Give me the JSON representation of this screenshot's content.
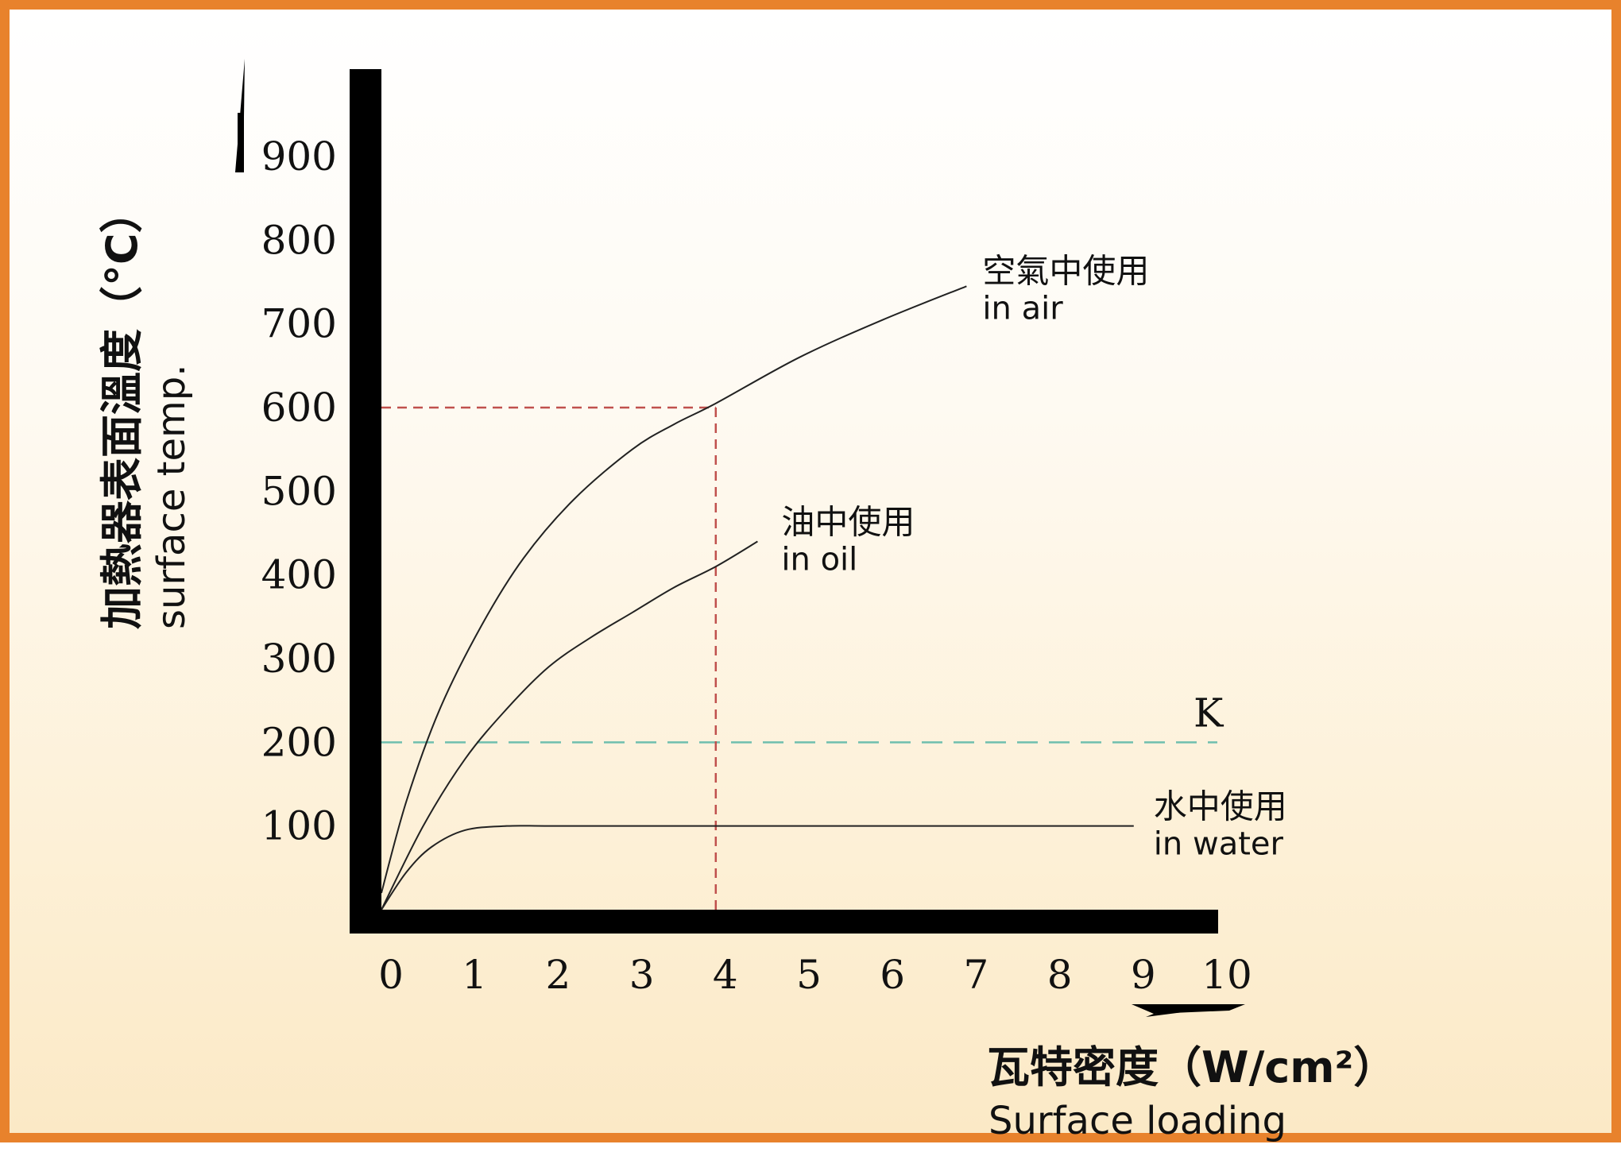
{
  "chart_data": {
    "type": "line",
    "xlabel": "瓦特密度（W/cm²）",
    "xlabel_en": "Surface loading",
    "ylabel": "加熱器表面溫度（°C）",
    "ylabel_en": "surface temp.",
    "xlim": [
      0,
      10
    ],
    "ylim": [
      0,
      1000
    ],
    "x_ticks": [
      "0",
      "1",
      "2",
      "3",
      "4",
      "5",
      "6",
      "7",
      "8",
      "9",
      "10"
    ],
    "y_ticks": [
      "100",
      "200",
      "300",
      "400",
      "500",
      "600",
      "700",
      "800",
      "900"
    ],
    "series": [
      {
        "name": "空氣中使用",
        "name_en": "in air",
        "x": [
          0,
          0.3,
          0.7,
          1.2,
          1.7,
          2.3,
          3.0,
          3.5,
          4.0,
          5.0,
          6.0,
          7.0
        ],
        "y": [
          20,
          130,
          240,
          340,
          420,
          490,
          550,
          580,
          605,
          660,
          705,
          745
        ],
        "color": "#222222"
      },
      {
        "name": "油中使用",
        "name_en": "in oil",
        "x": [
          0,
          0.5,
          1.0,
          1.5,
          2.0,
          2.5,
          3.0,
          3.5,
          4.0,
          4.5
        ],
        "y": [
          0,
          100,
          180,
          240,
          290,
          325,
          355,
          385,
          410,
          440
        ],
        "color": "#222222"
      },
      {
        "name": "水中使用",
        "name_en": "in water",
        "x": [
          0,
          0.3,
          0.6,
          1.0,
          1.5,
          2.0,
          3.0,
          5.0,
          7.0,
          9.0
        ],
        "y": [
          0,
          45,
          75,
          95,
          100,
          100,
          100,
          100,
          100,
          100
        ],
        "color": "#222222"
      }
    ],
    "reference_lines": [
      {
        "label": "K",
        "axis": "y",
        "value": 200,
        "x_range": [
          0,
          10
        ],
        "color": "#6fbfae"
      },
      {
        "label": "",
        "axis": "y",
        "value": 600,
        "x_range": [
          0,
          4
        ],
        "color": "#c0504d"
      },
      {
        "label": "",
        "axis": "x",
        "value": 4,
        "y_range": [
          0,
          600
        ],
        "color": "#c0504d"
      }
    ]
  }
}
